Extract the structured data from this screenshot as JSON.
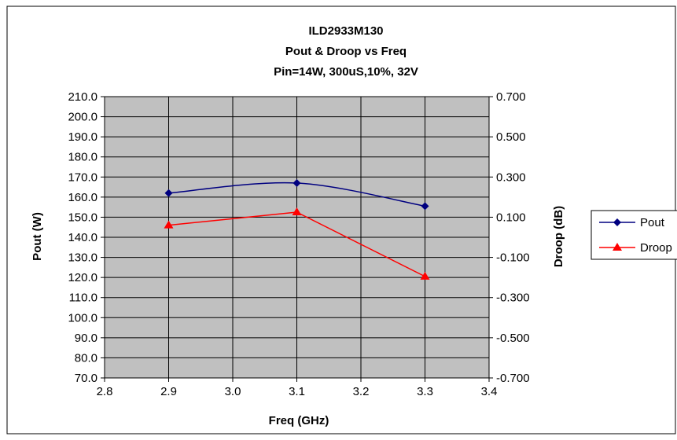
{
  "chart_data": {
    "type": "line",
    "title_lines": [
      "ILD2933M130",
      "Pout & Droop vs Freq",
      "Pin=14W, 300uS,10%, 32V"
    ],
    "xlabel": "Freq (GHz)",
    "ylabel": "Pout (W)",
    "y2label": "Droop (dB)",
    "xlim": [
      2.8,
      3.4
    ],
    "ylim": [
      70,
      210
    ],
    "y2lim": [
      -0.7,
      0.7
    ],
    "xticks": [
      "2.8",
      "2.9",
      "3.0",
      "3.1",
      "3.2",
      "3.3",
      "3.4"
    ],
    "yticks": [
      "70.0",
      "80.0",
      "90.0",
      "100.0",
      "110.0",
      "120.0",
      "130.0",
      "140.0",
      "150.0",
      "160.0",
      "170.0",
      "180.0",
      "190.0",
      "200.0",
      "210.0"
    ],
    "y2ticks": [
      "-0.700",
      "-0.500",
      "-0.300",
      "-0.100",
      "0.100",
      "0.300",
      "0.500",
      "0.700"
    ],
    "grid": true,
    "plot_background": "#c0c0c0",
    "legend_placement": "right",
    "series": [
      {
        "name": "Pout",
        "axis": "left",
        "color": "#000080",
        "marker": "diamond",
        "smooth": true,
        "x": [
          2.9,
          3.1,
          3.3
        ],
        "y": [
          162,
          167,
          155.5
        ]
      },
      {
        "name": "Droop",
        "axis": "right",
        "color": "#ff0000",
        "marker": "triangle",
        "smooth": false,
        "x": [
          2.9,
          3.1,
          3.3
        ],
        "y": [
          0.06,
          0.125,
          -0.195
        ]
      }
    ]
  }
}
